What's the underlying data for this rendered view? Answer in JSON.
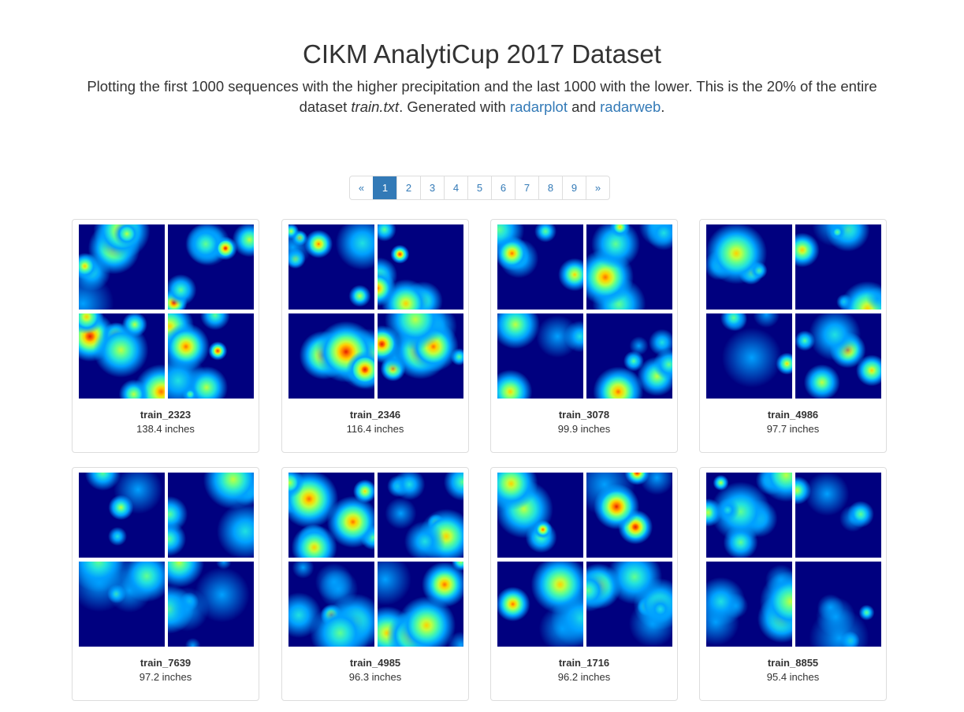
{
  "header": {
    "title": "CIKM AnalytiCup 2017 Dataset",
    "subtitle": {
      "text1": "Plotting the first 1000 sequences with the higher precipitation and the last 1000 with the lower. This is the 20% of the entire dataset ",
      "italic": "train.txt",
      "text2": ". Generated with ",
      "link1": "radarplot",
      "text3": " and ",
      "link2": "radarweb",
      "text4": "."
    }
  },
  "pagination": {
    "items": [
      "«",
      "1",
      "2",
      "3",
      "4",
      "5",
      "6",
      "7",
      "8",
      "9",
      "»"
    ],
    "active": "1"
  },
  "colors": {
    "link": "#337ab7",
    "radar_background": "#00007f"
  },
  "cards": [
    {
      "name": "train_2323",
      "value": "138.4 inches"
    },
    {
      "name": "train_2346",
      "value": "116.4 inches"
    },
    {
      "name": "train_3078",
      "value": "99.9 inches"
    },
    {
      "name": "train_4986",
      "value": "97.7 inches"
    },
    {
      "name": "train_7639",
      "value": "97.2 inches"
    },
    {
      "name": "train_4985",
      "value": "96.3 inches"
    },
    {
      "name": "train_1716",
      "value": "96.2 inches"
    },
    {
      "name": "train_8855",
      "value": "95.4 inches"
    }
  ]
}
